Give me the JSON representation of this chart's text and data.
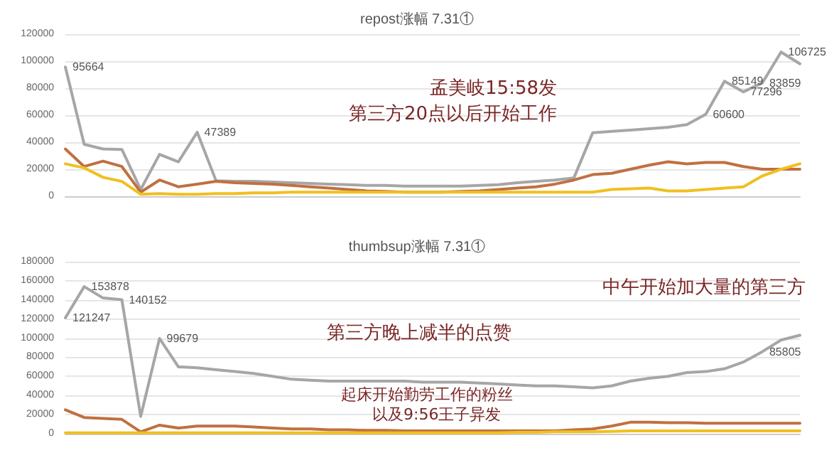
{
  "chart_data": [
    {
      "type": "line",
      "title": "repost涨幅 7.31①",
      "categories": [
        null,
        null,
        null,
        null,
        null,
        null,
        null,
        null,
        null,
        null,
        null,
        null,
        null,
        null,
        null,
        null,
        null,
        null,
        null,
        null,
        null,
        null,
        null,
        null,
        null,
        null,
        null,
        null,
        null,
        null,
        null,
        null,
        null,
        null,
        null,
        null,
        null,
        null,
        null,
        null
      ],
      "series": [
        {
          "color": "#a6a6a6",
          "values": [
            95664,
            38392,
            35000,
            34650,
            5000,
            31000,
            25448,
            47389,
            11500,
            11000,
            11000,
            10500,
            10000,
            9500,
            9000,
            8500,
            8000,
            8000,
            7500,
            7500,
            7500,
            7500,
            8000,
            8500,
            10000,
            11000,
            12000,
            13616,
            47000,
            48000,
            49000,
            50000,
            51000,
            53000,
            60600,
            85149,
            77296,
            83859,
            106725,
            98000
          ],
          "value_labels": [
            "95664",
            null,
            null,
            null,
            null,
            null,
            null,
            "47389",
            null,
            null,
            null,
            null,
            null,
            null,
            null,
            null,
            null,
            null,
            null,
            null,
            null,
            null,
            null,
            null,
            null,
            null,
            null,
            null,
            null,
            null,
            null,
            null,
            null,
            null,
            "60600",
            "85149",
            "77296",
            "83859",
            "106725",
            null
          ]
        },
        {
          "color": "#c07040",
          "values": [
            35000,
            22000,
            26000,
            22000,
            3000,
            12000,
            7000,
            9000,
            11000,
            10000,
            9500,
            9000,
            8000,
            7000,
            6000,
            5000,
            4000,
            3500,
            3000,
            3000,
            3000,
            3500,
            4000,
            5000,
            6000,
            7000,
            9000,
            12000,
            16000,
            17000,
            20000,
            23000,
            25500,
            24000,
            25000,
            25000,
            22000,
            20000,
            20000,
            20000
          ]
        },
        {
          "color": "#f0c020",
          "values": [
            24000,
            21000,
            14000,
            11000,
            1500,
            2000,
            1500,
            1500,
            2000,
            2000,
            2500,
            2500,
            3000,
            3000,
            3000,
            3000,
            3000,
            3000,
            3000,
            3000,
            3000,
            3000,
            3000,
            3000,
            3000,
            3000,
            3000,
            3000,
            3000,
            5000,
            5500,
            6000,
            4000,
            4000,
            5000,
            6000,
            7000,
            15000,
            20000,
            24000
          ]
        }
      ],
      "ylim": [
        0,
        120000
      ],
      "yticks": [
        0,
        20000,
        40000,
        60000,
        80000,
        100000,
        120000
      ],
      "grid": "y",
      "marker": "none",
      "annotations": [
        "孟美岐15:58发",
        "第三方20点以后开始工作"
      ]
    },
    {
      "type": "line",
      "title": "thumbsup涨幅 7.31①",
      "categories": [
        null,
        null,
        null,
        null,
        null,
        null,
        null,
        null,
        null,
        null,
        null,
        null,
        null,
        null,
        null,
        null,
        null,
        null,
        null,
        null,
        null,
        null,
        null,
        null,
        null,
        null,
        null,
        null,
        null,
        null,
        null,
        null,
        null,
        null,
        null,
        null,
        null,
        null,
        null,
        null
      ],
      "series": [
        {
          "color": "#a6a6a6",
          "values": [
            121247,
            153878,
            142000,
            140152,
            18000,
            99679,
            70000,
            69000,
            67000,
            65000,
            63000,
            60000,
            57000,
            56000,
            55000,
            55000,
            55000,
            55000,
            55000,
            54000,
            54000,
            54000,
            53000,
            52000,
            51000,
            50000,
            50000,
            49000,
            48000,
            50000,
            55000,
            58000,
            60000,
            64000,
            65000,
            68000,
            75000,
            85805,
            98000,
            103000
          ],
          "value_labels": [
            "121247",
            "153878",
            null,
            "140152",
            null,
            "99679",
            null,
            null,
            null,
            null,
            null,
            null,
            null,
            null,
            null,
            null,
            null,
            null,
            null,
            null,
            null,
            null,
            null,
            null,
            null,
            null,
            null,
            null,
            null,
            null,
            null,
            null,
            null,
            null,
            null,
            null,
            null,
            "85805",
            null,
            null
          ]
        },
        {
          "color": "#c07040",
          "values": [
            25000,
            17000,
            16000,
            15000,
            2000,
            9000,
            6000,
            8000,
            8000,
            8000,
            7000,
            6000,
            5000,
            5000,
            4000,
            4000,
            3500,
            3500,
            3000,
            3000,
            3000,
            3000,
            3000,
            3000,
            3000,
            3000,
            3000,
            4000,
            5000,
            8000,
            12000,
            12000,
            11500,
            11500,
            11000,
            11000,
            11000,
            11000,
            11000,
            11000
          ]
        },
        {
          "color": "#f0c020",
          "values": [
            1000,
            1000,
            1000,
            1000,
            1000,
            1000,
            1000,
            1000,
            1000,
            1000,
            1000,
            1000,
            1000,
            1000,
            1000,
            1000,
            1000,
            1000,
            1000,
            1000,
            1000,
            1000,
            1000,
            1000,
            1500,
            1500,
            2000,
            2000,
            2000,
            2500,
            3000,
            3000,
            3000,
            3000,
            3000,
            3000,
            3000,
            3000,
            3000,
            3000
          ]
        }
      ],
      "ylim": [
        0,
        180000
      ],
      "yticks": [
        0,
        20000,
        40000,
        60000,
        80000,
        100000,
        120000,
        140000,
        160000,
        180000
      ],
      "grid": "y",
      "marker": "none",
      "annotations": [
        "中午开始加大量的第三方",
        "第三方晚上减半的点赞",
        "起床开始勤劳工作的粉丝",
        "以及9:56王子异发"
      ]
    }
  ]
}
